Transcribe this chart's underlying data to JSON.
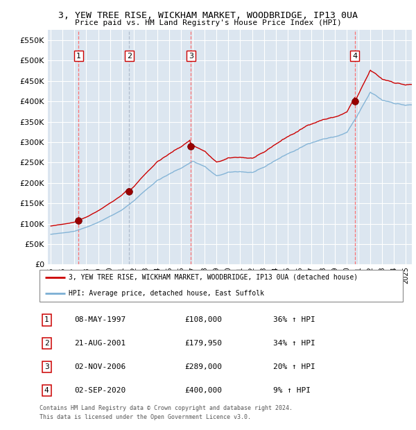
{
  "title1": "3, YEW TREE RISE, WICKHAM MARKET, WOODBRIDGE, IP13 0UA",
  "title2": "Price paid vs. HM Land Registry's House Price Index (HPI)",
  "plot_bg_color": "#dce6f0",
  "ylim": [
    0,
    575000
  ],
  "yticks": [
    0,
    50000,
    100000,
    150000,
    200000,
    250000,
    300000,
    350000,
    400000,
    450000,
    500000,
    550000
  ],
  "xlim_start": 1994.75,
  "xlim_end": 2025.5,
  "transactions": [
    {
      "label": "1",
      "date": "08-MAY-1997",
      "year": 1997.35,
      "price": 108000,
      "hpi_pct": 1.36
    },
    {
      "label": "2",
      "date": "21-AUG-2001",
      "year": 2001.63,
      "price": 179950,
      "hpi_pct": 1.34
    },
    {
      "label": "3",
      "date": "02-NOV-2006",
      "year": 2006.83,
      "price": 289000,
      "hpi_pct": 1.2
    },
    {
      "label": "4",
      "date": "02-SEP-2020",
      "year": 2020.67,
      "price": 400000,
      "hpi_pct": 1.09
    }
  ],
  "legend_property_label": "3, YEW TREE RISE, WICKHAM MARKET, WOODBRIDGE, IP13 0UA (detached house)",
  "legend_hpi_label": "HPI: Average price, detached house, East Suffolk",
  "footer": "Contains HM Land Registry data © Crown copyright and database right 2024.\nThis data is licensed under the Open Government Licence v3.0.",
  "table_rows": [
    [
      "1",
      "08-MAY-1997",
      "£108,000",
      "36% ↑ HPI"
    ],
    [
      "2",
      "21-AUG-2001",
      "£179,950",
      "34% ↑ HPI"
    ],
    [
      "3",
      "02-NOV-2006",
      "£289,000",
      "20% ↑ HPI"
    ],
    [
      "4",
      "02-SEP-2020",
      "£400,000",
      "9% ↑ HPI"
    ]
  ],
  "hpi_color": "#7bafd4",
  "price_color": "#cc0000",
  "marker_color": "#990000",
  "vline_color": "#ff6666",
  "vline2_color": "#aabbcc"
}
